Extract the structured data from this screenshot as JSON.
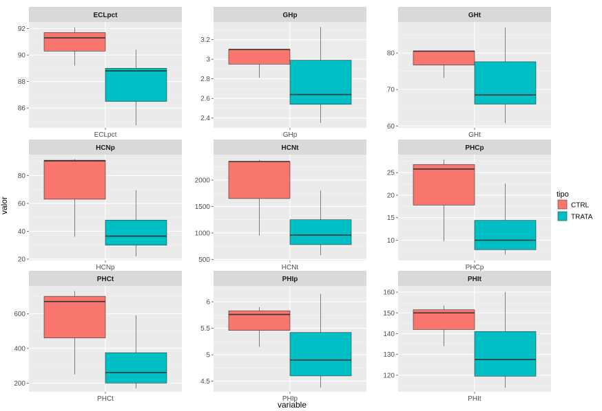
{
  "chart_data": {
    "type": "boxplot",
    "xlabel": "variable",
    "ylabel": "valor",
    "legend": {
      "title": "tipo",
      "position": "right",
      "items": [
        {
          "name": "CTRL",
          "color": "#F8766D"
        },
        {
          "name": "TRATA",
          "color": "#00BFC4"
        }
      ]
    },
    "grid": true,
    "panels": [
      {
        "title": "ECLpct",
        "xtick": "ECLpct",
        "ylim": [
          84.5,
          92.5
        ],
        "yticks": [
          86,
          88,
          90,
          92
        ],
        "boxes": [
          {
            "group": "CTRL",
            "min": 89.2,
            "q1": 90.3,
            "median": 91.3,
            "q3": 91.7,
            "max": 92.1
          },
          {
            "group": "TRATA",
            "min": 84.7,
            "q1": 86.5,
            "median": 88.8,
            "q3": 89.0,
            "max": 90.4
          }
        ]
      },
      {
        "title": "GHp",
        "xtick": "GHp",
        "ylim": [
          2.3,
          3.38
        ],
        "yticks": [
          2.4,
          2.6,
          2.8,
          3.0,
          3.2
        ],
        "boxes": [
          {
            "group": "CTRL",
            "min": 2.81,
            "q1": 2.95,
            "median": 3.1,
            "q3": 3.1,
            "max": 3.1
          },
          {
            "group": "TRATA",
            "min": 2.35,
            "q1": 2.54,
            "median": 2.64,
            "q3": 2.99,
            "max": 3.33
          }
        ]
      },
      {
        "title": "GHt",
        "xtick": "GHt",
        "ylim": [
          59.5,
          88.5
        ],
        "yticks": [
          60,
          70,
          80
        ],
        "boxes": [
          {
            "group": "CTRL",
            "min": 73.2,
            "q1": 76.7,
            "median": 80.5,
            "q3": 80.5,
            "max": 80.5
          },
          {
            "group": "TRATA",
            "min": 60.8,
            "q1": 66.0,
            "median": 68.5,
            "q3": 77.6,
            "max": 87.0
          }
        ]
      },
      {
        "title": "HCNp",
        "xtick": "HCNp",
        "ylim": [
          19,
          95
        ],
        "yticks": [
          20,
          40,
          60,
          80
        ],
        "boxes": [
          {
            "group": "CTRL",
            "min": 36.0,
            "q1": 63.0,
            "median": 90.5,
            "q3": 91.0,
            "max": 92.0
          },
          {
            "group": "TRATA",
            "min": 22.0,
            "q1": 30.0,
            "median": 36.5,
            "q3": 48.0,
            "max": 69.5
          }
        ]
      },
      {
        "title": "HCNt",
        "xtick": "HCNt",
        "ylim": [
          480,
          2480
        ],
        "yticks": [
          500,
          1000,
          1500,
          2000
        ],
        "boxes": [
          {
            "group": "CTRL",
            "min": 950,
            "q1": 1650,
            "median": 2350,
            "q3": 2350,
            "max": 2380
          },
          {
            "group": "TRATA",
            "min": 580,
            "q1": 780,
            "median": 960,
            "q3": 1250,
            "max": 1800
          }
        ]
      },
      {
        "title": "PHCp",
        "xtick": "PHCp",
        "ylim": [
          5.5,
          29
        ],
        "yticks": [
          10,
          15,
          20,
          25
        ],
        "boxes": [
          {
            "group": "CTRL",
            "min": 9.8,
            "q1": 17.8,
            "median": 25.8,
            "q3": 26.8,
            "max": 27.9
          },
          {
            "group": "TRATA",
            "min": 6.8,
            "q1": 7.9,
            "median": 10.0,
            "q3": 14.4,
            "max": 22.6
          }
        ]
      },
      {
        "title": "PHCt",
        "xtick": "PHCt",
        "ylim": [
          150,
          760
        ],
        "yticks": [
          200,
          400,
          600
        ],
        "boxes": [
          {
            "group": "CTRL",
            "min": 250,
            "q1": 460,
            "median": 670,
            "q3": 700,
            "max": 730
          },
          {
            "group": "TRATA",
            "min": 170,
            "q1": 200,
            "median": 260,
            "q3": 375,
            "max": 590
          }
        ]
      },
      {
        "title": "PHIp",
        "xtick": "PHIp",
        "ylim": [
          4.3,
          6.3
        ],
        "yticks": [
          4.5,
          5.0,
          5.5,
          6.0
        ],
        "boxes": [
          {
            "group": "CTRL",
            "min": 5.15,
            "q1": 5.46,
            "median": 5.76,
            "q3": 5.83,
            "max": 5.9
          },
          {
            "group": "TRATA",
            "min": 4.38,
            "q1": 4.6,
            "median": 4.9,
            "q3": 5.42,
            "max": 6.15
          }
        ]
      },
      {
        "title": "PHIt",
        "xtick": "PHIt",
        "ylim": [
          112,
          163
        ],
        "yticks": [
          120,
          130,
          140,
          150,
          160
        ],
        "boxes": [
          {
            "group": "CTRL",
            "min": 134,
            "q1": 142,
            "median": 150,
            "q3": 151.5,
            "max": 153.5
          },
          {
            "group": "TRATA",
            "min": 114,
            "q1": 119.5,
            "median": 127.5,
            "q3": 141,
            "max": 160
          }
        ]
      }
    ]
  }
}
